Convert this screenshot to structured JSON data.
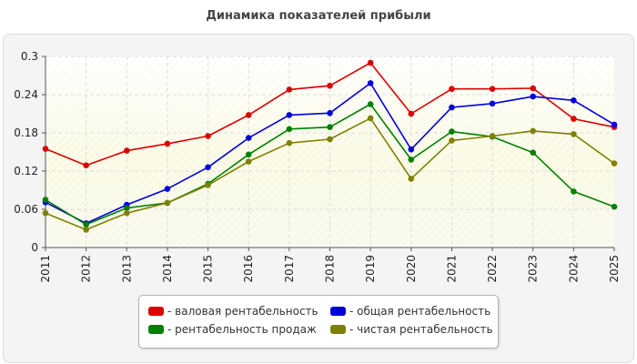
{
  "chart_data": {
    "type": "line",
    "title": "Динамика показателей прибыли",
    "x": [
      "2011",
      "2012",
      "2013",
      "2014",
      "2015",
      "2016",
      "2017",
      "2018",
      "2019",
      "2020",
      "2021",
      "2022",
      "2023",
      "2024",
      "2025"
    ],
    "y_ticks": [
      "0",
      "0.06",
      "0.12",
      "0.18",
      "0.24",
      "0.3"
    ],
    "ylim": [
      0,
      0.3
    ],
    "grid": true,
    "legend_position": "bottom",
    "series": [
      {
        "name": "- валовая рентабельность",
        "color": "#dd0000",
        "values": [
          0.155,
          0.129,
          0.152,
          0.163,
          0.175,
          0.208,
          0.248,
          0.254,
          0.29,
          0.21,
          0.249,
          0.249,
          0.25,
          0.202,
          0.189
        ]
      },
      {
        "name": "- общая рентабельность",
        "color": "#0000dd",
        "values": [
          0.071,
          0.038,
          0.067,
          0.092,
          0.126,
          0.172,
          0.208,
          0.211,
          0.258,
          0.154,
          0.22,
          0.226,
          0.237,
          0.231,
          0.193
        ]
      },
      {
        "name": "- рентабельность продаж",
        "color": "#008000",
        "values": [
          0.075,
          0.036,
          0.062,
          0.07,
          0.1,
          0.146,
          0.186,
          0.189,
          0.225,
          0.138,
          0.182,
          0.174,
          0.149,
          0.088,
          0.064
        ]
      },
      {
        "name": "- чистая рентабельность",
        "color": "#808000",
        "values": [
          0.054,
          0.028,
          0.054,
          0.07,
          0.098,
          0.135,
          0.164,
          0.17,
          0.203,
          0.108,
          0.168,
          0.175,
          0.183,
          0.178,
          0.132
        ]
      }
    ]
  }
}
